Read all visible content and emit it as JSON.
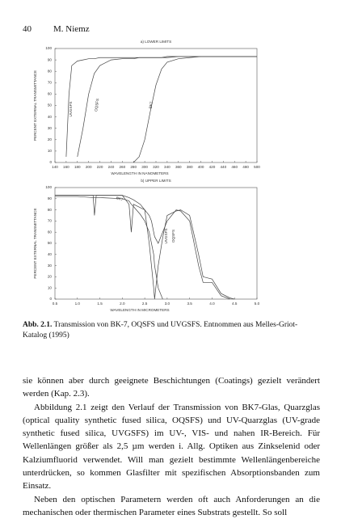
{
  "header": {
    "page_number": "40",
    "author": "M. Niemz"
  },
  "chart_data": [
    {
      "type": "line",
      "title": "a) LOWER LIMITS",
      "x_label": "WAVELENGTH IN NANOMETERS",
      "y_label": "PERCENT EXTERNAL TRANSMITTANCE",
      "x": [
        140,
        150,
        160,
        165,
        170,
        180,
        190,
        200,
        210,
        220,
        240,
        260,
        280,
        290,
        300,
        310,
        320,
        330,
        340,
        360,
        380,
        400,
        450,
        500
      ],
      "series": [
        {
          "name": "UVGSFS",
          "color": "#444444",
          "values": [
            null,
            null,
            5,
            60,
            85,
            89,
            90,
            91,
            91,
            92,
            92,
            92,
            92,
            92,
            92,
            92,
            92,
            92,
            93,
            93,
            93,
            93,
            93,
            93
          ]
        },
        {
          "name": "OQSFS",
          "color": "#444444",
          "values": [
            null,
            null,
            null,
            null,
            null,
            5,
            30,
            60,
            78,
            85,
            90,
            91,
            91,
            92,
            92,
            92,
            92,
            92,
            92,
            93,
            93,
            93,
            93,
            93
          ]
        },
        {
          "name": "BK7",
          "color": "#444444",
          "values": [
            null,
            null,
            null,
            null,
            null,
            null,
            null,
            null,
            null,
            null,
            null,
            null,
            0,
            5,
            20,
            45,
            68,
            82,
            88,
            91,
            92,
            93,
            93,
            93
          ]
        }
      ],
      "xlim": [
        140,
        500
      ],
      "ylim": [
        0,
        100
      ],
      "xticks": [
        140,
        160,
        180,
        200,
        220,
        240,
        260,
        280,
        300,
        320,
        340,
        360,
        380,
        400,
        420,
        440,
        460,
        480,
        500
      ],
      "yticks": [
        0,
        10,
        20,
        30,
        40,
        50,
        60,
        70,
        80,
        90,
        100
      ],
      "grid": false
    },
    {
      "type": "line",
      "title": "b) UPPER LIMITS",
      "x_label": "WAVELENGTH IN MICROMETERS",
      "y_label": "PERCENT EXTERNAL TRANSMITTANCE",
      "x": [
        0.5,
        1.0,
        1.35,
        1.38,
        1.42,
        1.5,
        2.0,
        2.15,
        2.2,
        2.25,
        2.4,
        2.5,
        2.6,
        2.65,
        2.7,
        2.72,
        2.8,
        2.9,
        3.0,
        3.2,
        3.3,
        3.5,
        3.7,
        3.8,
        4.0,
        4.2,
        4.4,
        4.5,
        5.0
      ],
      "series": [
        {
          "name": "BK7",
          "color": "#444444",
          "values": [
            92,
            92,
            91,
            91,
            91,
            91,
            90,
            88,
            85,
            83,
            76,
            70,
            60,
            50,
            40,
            30,
            10,
            0,
            null,
            null,
            null,
            null,
            null,
            null,
            null,
            null,
            null,
            null,
            null
          ]
        },
        {
          "name": "UVGSFS",
          "color": "#444444",
          "values": [
            93,
            93,
            93,
            75,
            93,
            93,
            93,
            85,
            60,
            85,
            82,
            80,
            50,
            30,
            10,
            0,
            30,
            55,
            75,
            79,
            80,
            75,
            40,
            20,
            18,
            5,
            1,
            0,
            null
          ]
        },
        {
          "name": "OQSFS",
          "color": "#444444",
          "values": [
            93,
            93,
            93,
            93,
            93,
            93,
            93,
            91,
            90,
            89,
            85,
            80,
            75,
            70,
            60,
            56,
            50,
            60,
            70,
            80,
            79,
            70,
            30,
            15,
            15,
            3,
            0,
            null,
            null
          ]
        }
      ],
      "xlim": [
        0.5,
        5.0
      ],
      "ylim": [
        0,
        100
      ],
      "xticks": [
        {
          "value": 0.5,
          "label": "0.5"
        },
        {
          "value": 1,
          "label": "1.0"
        },
        {
          "value": 1.5,
          "label": "1.5"
        },
        {
          "value": 2,
          "label": "2.0"
        },
        {
          "value": 2.5,
          "label": "2.5"
        },
        {
          "value": 3,
          "label": "3.0"
        },
        {
          "value": 3.5,
          "label": "3.5"
        },
        {
          "value": 4,
          "label": "4.0"
        },
        {
          "value": 4.5,
          "label": "4.5"
        },
        {
          "value": 5,
          "label": "5.0"
        }
      ],
      "yticks": [
        0,
        10,
        20,
        30,
        40,
        50,
        60,
        70,
        80,
        90,
        100
      ],
      "grid": false
    }
  ],
  "caption": {
    "label": "Abb. 2.1.",
    "text": "Transmission von BK-7, OQSFS und UVGSFS. Entnommen aus Melles-Griot-Katalog (1995)"
  },
  "paragraphs": [
    "sie können aber durch geeignete Beschichtungen (Coatings) gezielt verändert werden (Kap. 2.3).",
    "Abbildung 2.1 zeigt den Verlauf der Transmission von BK7-Glas, Quarzglas (optical quality synthetic fused silica, OQSFS) und UV-Quarzglas (UV-grade synthetic fused silica, UVGSFS) im UV-, VIS- und nahen IR-Bereich. Für Wellenlängen größer als 2,5 µm werden i. Allg. Optiken aus Zinkselenid oder Kalziumfluorid verwendet. Will man gezielt bestimmte Wellenlängenbereiche unterdrücken, so kommen Glasfilter mit spezifischen Absorptionsbanden zum Einsatz.",
    "Neben den optischen Parametern werden oft auch Anforderungen an die mechanischen oder thermischen Parameter eines Substrats gestellt. So soll"
  ]
}
